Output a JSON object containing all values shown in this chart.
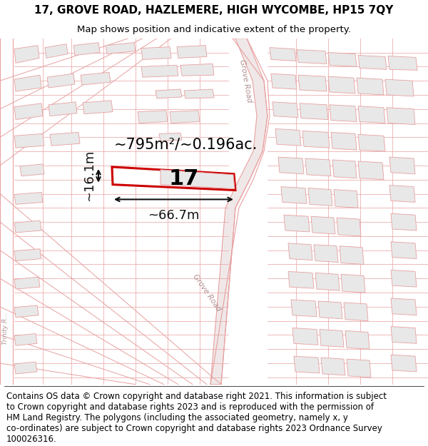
{
  "title_line1": "17, GROVE ROAD, HAZLEMERE, HIGH WYCOMBE, HP15 7QY",
  "title_line2": "Map shows position and indicative extent of the property.",
  "footer_lines": [
    "Contains OS data © Crown copyright and database right 2021. This information is subject",
    "to Crown copyright and database rights 2023 and is reproduced with the permission of",
    "HM Land Registry. The polygons (including the associated geometry, namely x, y",
    "co-ordinates) are subject to Crown copyright and database rights 2023 Ordnance Survey",
    "100026316."
  ],
  "area_label": "~795m²/~0.196ac.",
  "width_label": "~66.7m",
  "height_label": "~16.1m",
  "plot_number": "17",
  "map_bg": "#ffffff",
  "line_color": "#e8a0a0",
  "bld_fill": "#e8e8e8",
  "bld_edge": "#e8a0a0",
  "plot_edge": "#cc0000",
  "plot_fill": "#ffffff",
  "dim_color": "#111111",
  "road_label_color": "#b09090",
  "title_fontsize": 11,
  "subtitle_fontsize": 9.5,
  "footer_fontsize": 8.5,
  "area_fontsize": 15,
  "num_fontsize": 22,
  "dim_fontsize": 13
}
